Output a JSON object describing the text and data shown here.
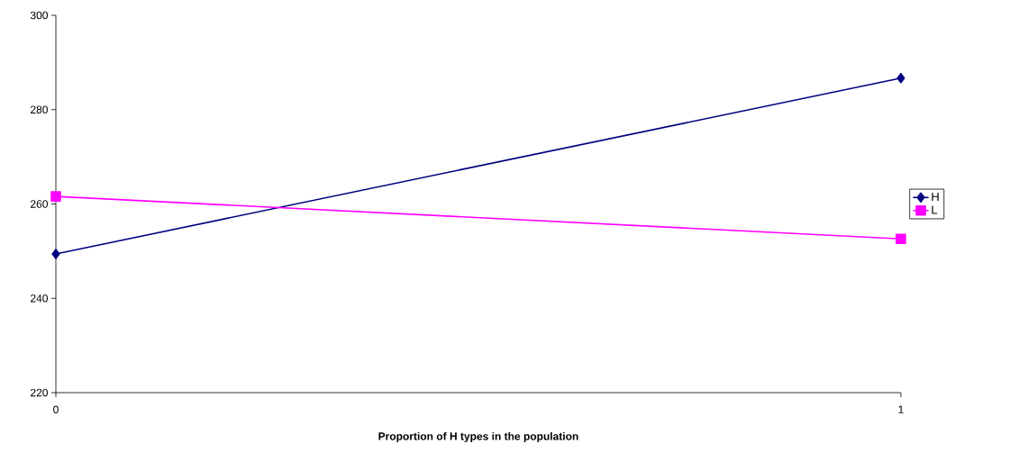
{
  "chart_data": {
    "type": "line",
    "xlabel": "Proportion of H types in the population",
    "x": [
      0,
      1
    ],
    "series": [
      {
        "name": "H",
        "color": "#000080",
        "values": [
          249.4,
          286.7
        ],
        "marker": "diamond"
      },
      {
        "name": "L",
        "color": "#ff00ff",
        "values": [
          261.6,
          252.6
        ],
        "marker": "square"
      }
    ],
    "xlim": [
      0,
      1
    ],
    "xticks": [
      0,
      1
    ],
    "ylim": [
      220,
      300
    ],
    "yticks": [
      220,
      240,
      260,
      280,
      300
    ],
    "grid": false,
    "legend": "right"
  }
}
